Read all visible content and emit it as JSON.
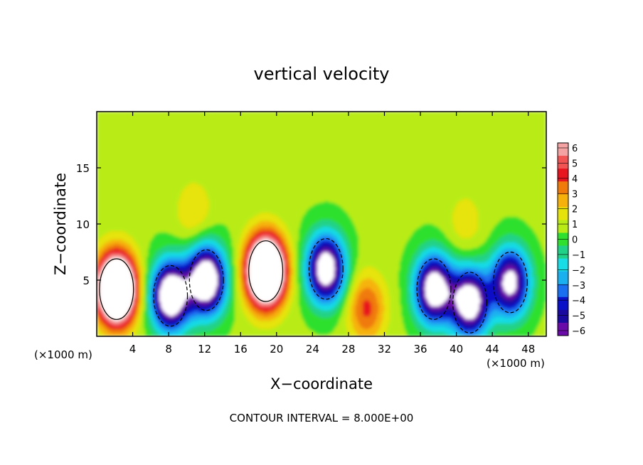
{
  "chart_data": {
    "type": "heatmap",
    "title": "vertical velocity",
    "xlabel": "X−coordinate",
    "ylabel": "Z−coordinate",
    "x_unit_left": "(×1000 m)",
    "x_unit_right": "(×1000 m)",
    "footer": "CONTOUR INTERVAL = 8.000E+00",
    "xlim": [
      0,
      50
    ],
    "ylim": [
      0,
      20
    ],
    "x_ticks": [
      "4",
      "8",
      "12",
      "16",
      "20",
      "24",
      "28",
      "32",
      "36",
      "40",
      "44",
      "48"
    ],
    "y_ticks": [
      "5",
      "10",
      "15"
    ],
    "colorbar": {
      "labels": [
        "6",
        "5",
        "4",
        "3",
        "2",
        "1",
        "0",
        "−1",
        "−2",
        "−3",
        "−4",
        "−5",
        "−6"
      ],
      "colors": [
        "#f4a2a2",
        "#f25353",
        "#e8141e",
        "#f07a0a",
        "#f6b20a",
        "#e6e30a",
        "#b9ec14",
        "#2fe02f",
        "#20d288",
        "#18dce6",
        "#1ab0f0",
        "#1a6ef0",
        "#0a10c8",
        "#1a0aa0",
        "#6a0aa8"
      ]
    },
    "features": [
      {
        "type": "updraft",
        "x": 2.2,
        "z": 4.2,
        "max": 14
      },
      {
        "type": "downdraft",
        "x": 8.2,
        "z": 3.6,
        "min": -10
      },
      {
        "type": "downdraft",
        "x": 12.2,
        "z": 5.0,
        "min": -10
      },
      {
        "type": "updraft",
        "x": 18.8,
        "z": 5.8,
        "max": 14
      },
      {
        "type": "downdraft",
        "x": 25.5,
        "z": 6.0,
        "min": -9
      },
      {
        "type": "updraft",
        "x": 30.0,
        "z": 2.5,
        "max": 3.5
      },
      {
        "type": "downdraft",
        "x": 37.5,
        "z": 4.2,
        "min": -9
      },
      {
        "type": "downdraft",
        "x": 41.5,
        "z": 3.0,
        "min": -9
      },
      {
        "type": "downdraft",
        "x": 46.0,
        "z": 4.8,
        "min": -8
      },
      {
        "type": "updraft",
        "x": 10.8,
        "z": 11.0,
        "max": 1.5
      },
      {
        "type": "updraft",
        "x": 41.0,
        "z": 10.0,
        "max": 1.2
      }
    ]
  }
}
